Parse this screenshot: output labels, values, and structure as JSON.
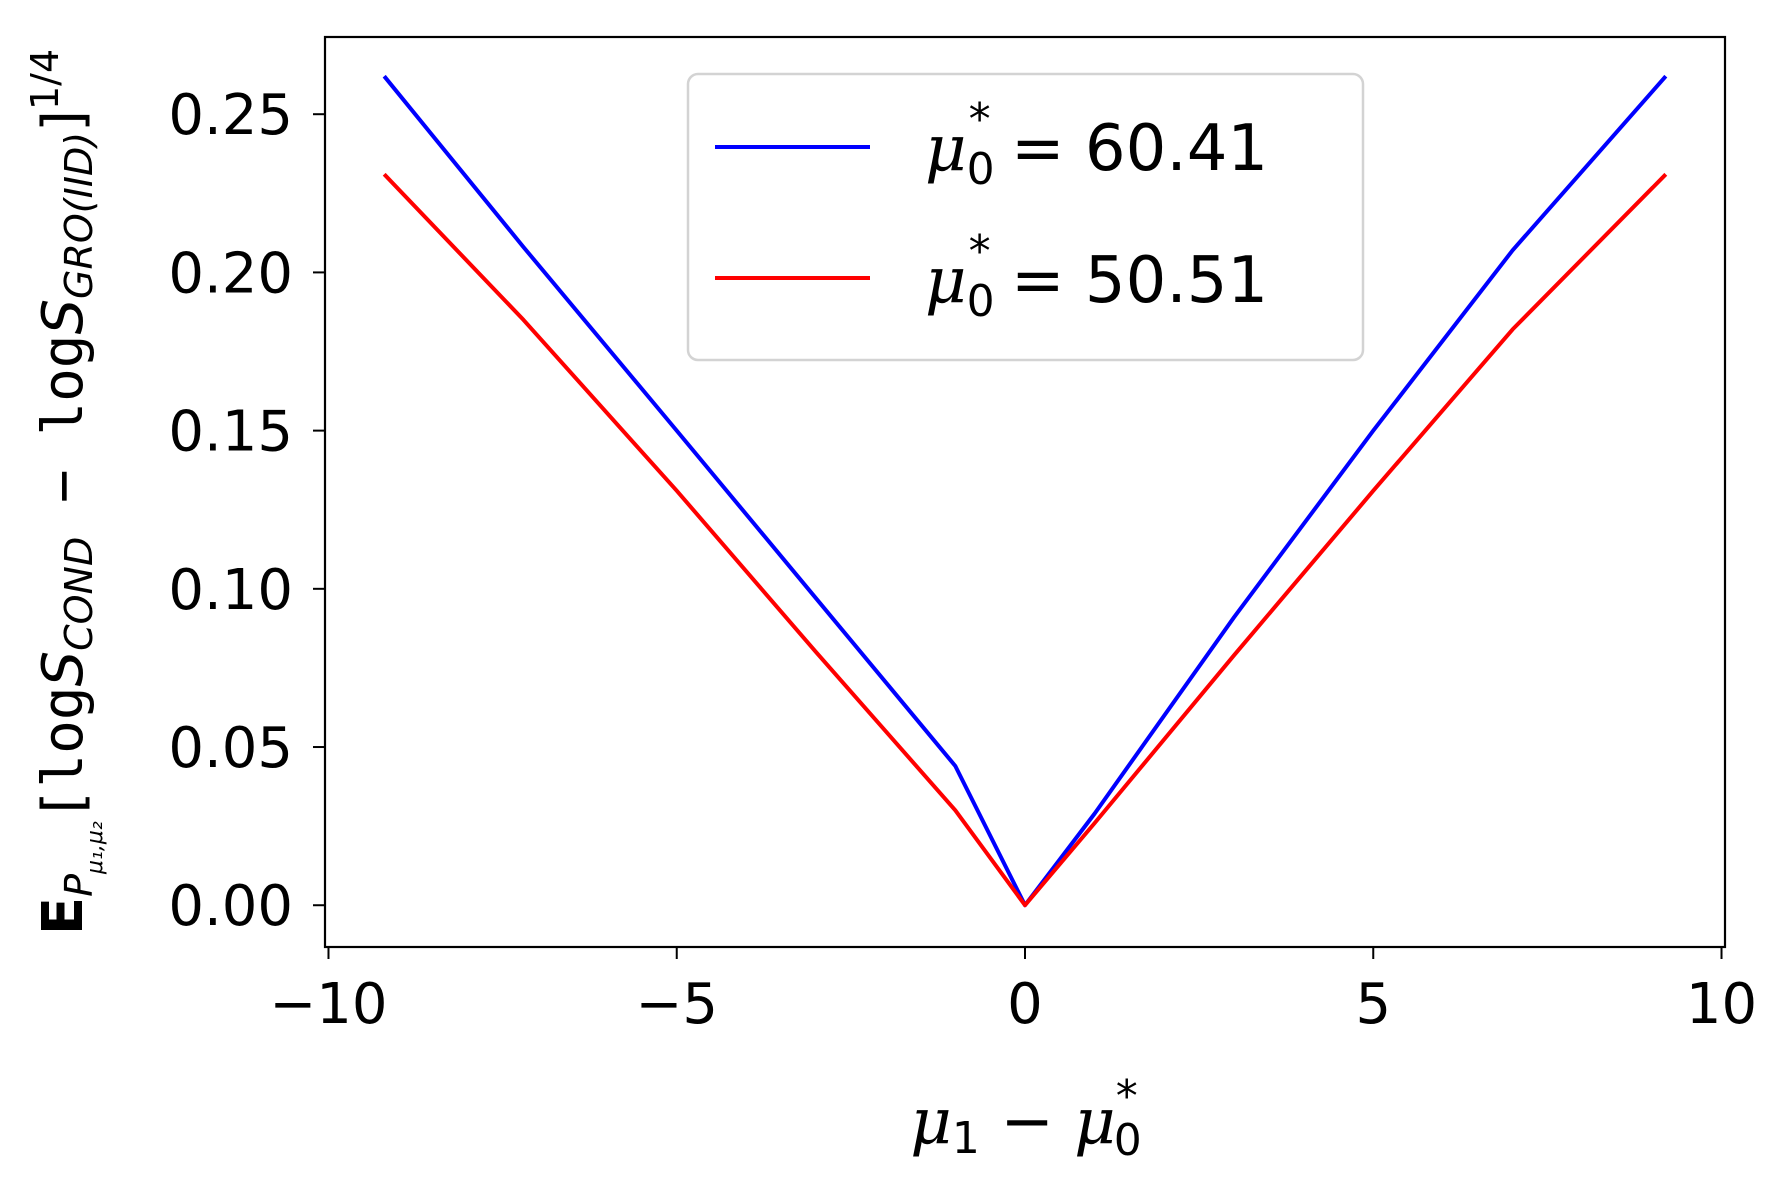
{
  "chart_data": {
    "type": "line",
    "xlabel": {
      "parts": [
        "μ",
        "1",
        " − ",
        "μ",
        "0",
        "*"
      ]
    },
    "ylabel": {
      "parts": [
        "E",
        "P",
        "μ₁,μ₂",
        "[log",
        "S",
        "COND",
        " − log",
        "S",
        "GRO(IID)",
        "]",
        "1/4"
      ]
    },
    "xlim": [
      -10.05,
      10.05
    ],
    "ylim": [
      -0.0132,
      0.2744
    ],
    "xticks": [
      -10,
      -5,
      0,
      5,
      10
    ],
    "xtick_labels": [
      "−10",
      "−5",
      "0",
      "5",
      "10"
    ],
    "yticks": [
      0.0,
      0.05,
      0.1,
      0.15,
      0.2,
      0.25
    ],
    "ytick_labels": [
      "0.00",
      "0.05",
      "0.10",
      "0.15",
      "0.20",
      "0.25"
    ],
    "grid": false,
    "legend_position": "upper center",
    "series": [
      {
        "name": "μ0* = 60.41",
        "legend_parts": [
          "μ",
          "0",
          "*",
          " = 60.41"
        ],
        "color": "#0000ff",
        "x": [
          -9.2,
          -7.2,
          -5.0,
          -3.0,
          -1.0,
          0.0,
          1.0,
          3.0,
          5.0,
          7.0,
          9.2
        ],
        "y": [
          0.262,
          0.208,
          0.15,
          0.097,
          0.044,
          0.0,
          0.029,
          0.091,
          0.15,
          0.207,
          0.262
        ]
      },
      {
        "name": "μ0* = 50.51",
        "legend_parts": [
          "μ",
          "0",
          "*",
          " = 50.51"
        ],
        "color": "#ff0000",
        "x": [
          -9.2,
          -7.2,
          -5.0,
          -3.0,
          -1.0,
          0.0,
          1.0,
          3.0,
          5.0,
          7.0,
          9.2
        ],
        "y": [
          0.231,
          0.185,
          0.131,
          0.08,
          0.03,
          0.0,
          0.026,
          0.079,
          0.131,
          0.182,
          0.231
        ]
      }
    ]
  }
}
